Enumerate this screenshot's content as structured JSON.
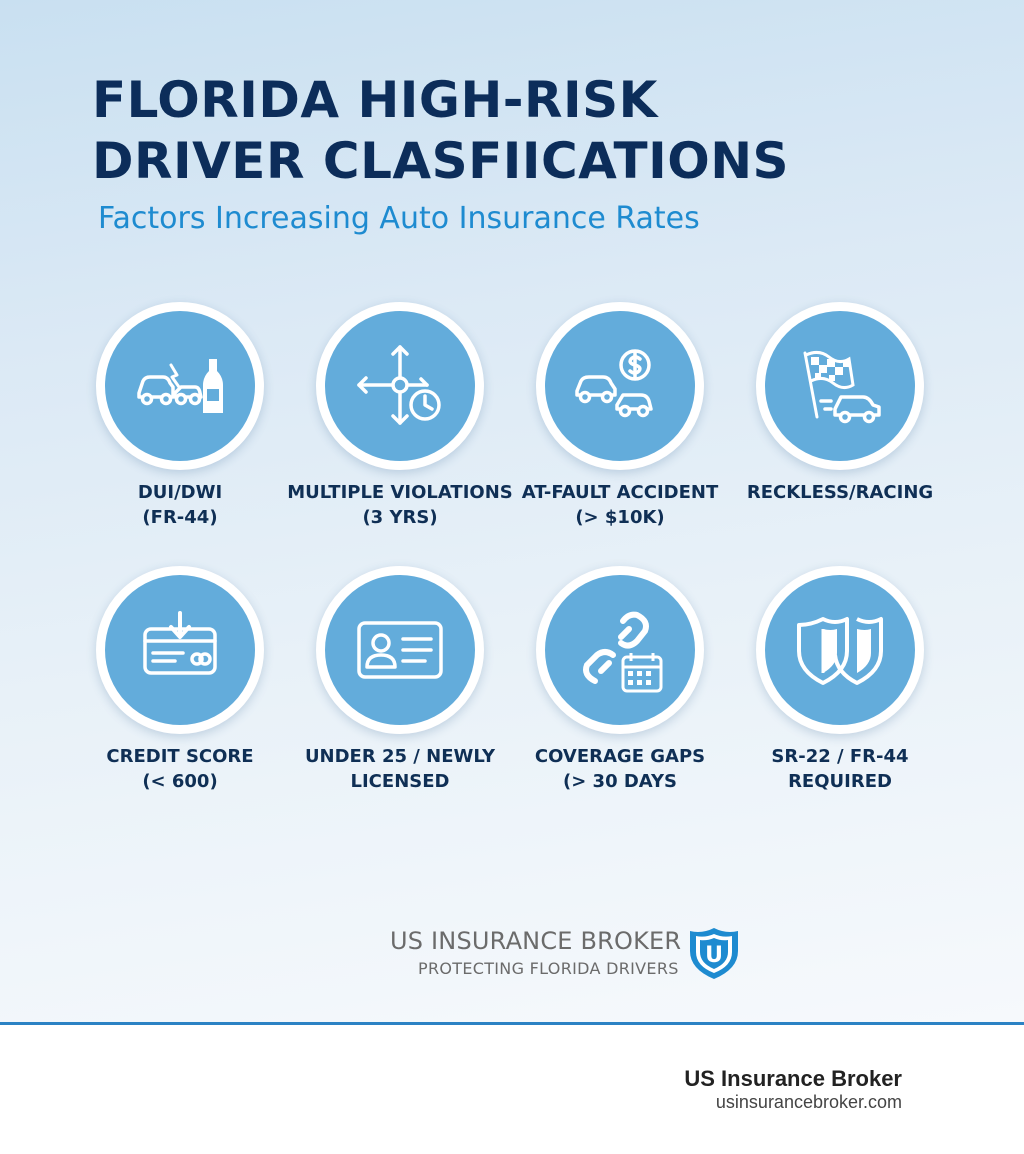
{
  "title_line1": "FLORIDA HIGH-RISK",
  "title_line2": "DRIVER CLASFIICATIONS",
  "subtitle": "Factors Increasing Auto Insurance Rates",
  "factors": [
    {
      "line1": "DUI/DWI",
      "line2": "(FR-44)",
      "icon": "crash-bottle-icon"
    },
    {
      "line1": "MULTIPLE VIOLATIONS",
      "line2": "(3 YRS)",
      "icon": "arrows-clock-icon"
    },
    {
      "line1": "AT-FAULT ACCIDENT",
      "line2": "(> $10K)",
      "icon": "accident-dollar-icon"
    },
    {
      "line1": "RECKLESS/RACING",
      "line2": "",
      "icon": "checkered-flag-car-icon"
    },
    {
      "line1": "CREDIT SCORE",
      "line2": "(< 600)",
      "icon": "credit-card-down-icon"
    },
    {
      "line1": "UNDER 25 / NEWLY",
      "line2": "LICENSED",
      "icon": "id-card-icon"
    },
    {
      "line1": "COVERAGE GAPS",
      "line2": "(> 30 DAYS",
      "icon": "broken-chain-calendar-icon"
    },
    {
      "line1": "SR-22 / FR-44",
      "line2": "REQUIRED",
      "icon": "double-shield-icon"
    }
  ],
  "brand": {
    "name": "US INSURANCE BROKER",
    "tagline": "PROTECTING FLORIDA DRIVERS",
    "logo_letter": "U"
  },
  "footer": {
    "name": "US Insurance Broker",
    "url": "usinsurancebroker.com"
  },
  "colors": {
    "title": "#0c2d5a",
    "subtitle": "#1e8bd0",
    "circle": "#63acdb",
    "divider": "#2b82c4"
  }
}
